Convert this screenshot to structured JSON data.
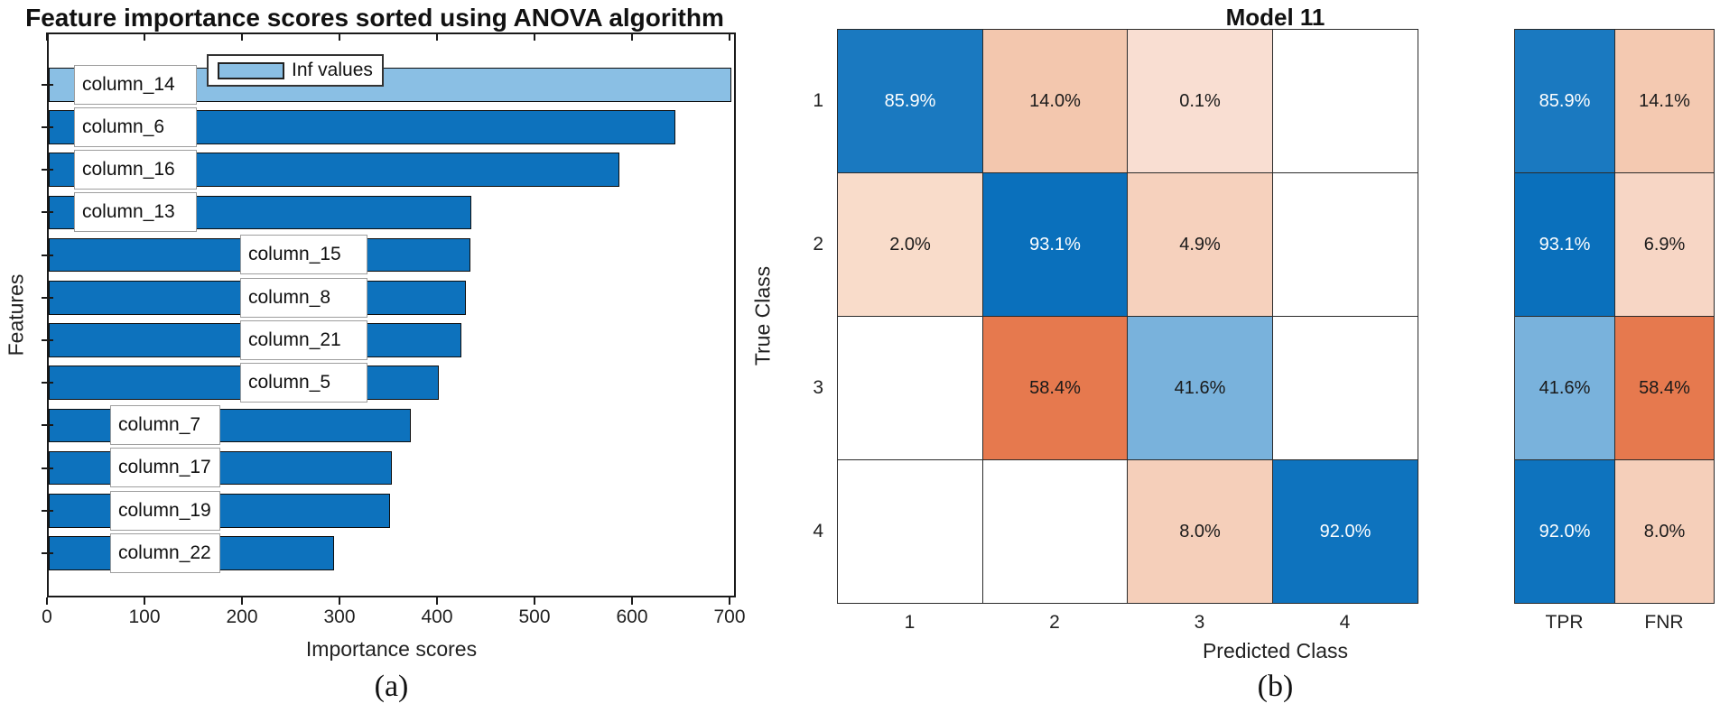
{
  "figure_a": {
    "title": "Feature importance scores sorted using ANOVA algorithm",
    "xlabel": "Importance scores",
    "ylabel": "Features",
    "caption": "(a)",
    "legend": {
      "label": "Inf values"
    },
    "x_ticks": [
      "0",
      "100",
      "200",
      "300",
      "400",
      "500",
      "600",
      "700"
    ],
    "bars": [
      {
        "label": "column_14",
        "value": "Inf",
        "display": 700,
        "color": "bar_light_blue",
        "box": "A"
      },
      {
        "label": "column_6",
        "value": 643,
        "display": 643,
        "color": "bar_blue",
        "box": "A"
      },
      {
        "label": "column_16",
        "value": 585,
        "display": 585,
        "color": "bar_blue",
        "box": "A"
      },
      {
        "label": "column_13",
        "value": 433,
        "display": 433,
        "color": "bar_blue",
        "box": "A"
      },
      {
        "label": "column_15",
        "value": 432,
        "display": 432,
        "color": "bar_blue",
        "box": "B"
      },
      {
        "label": "column_8",
        "value": 428,
        "display": 428,
        "color": "bar_blue",
        "box": "B"
      },
      {
        "label": "column_21",
        "value": 423,
        "display": 423,
        "color": "bar_blue",
        "box": "B"
      },
      {
        "label": "column_5",
        "value": 400,
        "display": 400,
        "color": "bar_blue",
        "box": "B"
      },
      {
        "label": "column_7",
        "value": 371,
        "display": 371,
        "color": "bar_blue",
        "box": "C"
      },
      {
        "label": "column_17",
        "value": 352,
        "display": 352,
        "color": "bar_blue",
        "box": "C"
      },
      {
        "label": "column_19",
        "value": 350,
        "display": 350,
        "color": "bar_blue",
        "box": "C"
      },
      {
        "label": "column_22",
        "value": 293,
        "display": 293,
        "color": "bar_blue",
        "box": "C"
      }
    ]
  },
  "figure_b": {
    "title": "Model 11",
    "xlabel": "Predicted Class",
    "ylabel": "True Class",
    "caption": "(b)",
    "x_ticks": [
      "1",
      "2",
      "3",
      "4"
    ],
    "y_ticks": [
      "1",
      "2",
      "3",
      "4"
    ],
    "summary_headers": [
      "TPR",
      "FNR"
    ],
    "matrix": [
      [
        {
          "text": "85.9%",
          "color": "blue_859",
          "fg": "white"
        },
        {
          "text": "14.0%",
          "color": "peach_14",
          "fg": "dark"
        },
        {
          "text": "0.1%",
          "color": "peach_01",
          "fg": "dark"
        },
        {
          "text": "",
          "color": null,
          "fg": "dark"
        }
      ],
      [
        {
          "text": "2.0%",
          "color": "peach_20",
          "fg": "dark"
        },
        {
          "text": "93.1%",
          "color": "blue_full",
          "fg": "white"
        },
        {
          "text": "4.9%",
          "color": "peach_49",
          "fg": "dark"
        },
        {
          "text": "",
          "color": null,
          "fg": "dark"
        }
      ],
      [
        {
          "text": "",
          "color": null,
          "fg": "dark"
        },
        {
          "text": "58.4%",
          "color": "orange_584",
          "fg": "dark"
        },
        {
          "text": "41.6%",
          "color": "blue_416",
          "fg": "dark"
        },
        {
          "text": "",
          "color": null,
          "fg": "dark"
        }
      ],
      [
        {
          "text": "",
          "color": null,
          "fg": "dark"
        },
        {
          "text": "",
          "color": null,
          "fg": "dark"
        },
        {
          "text": "8.0%",
          "color": "peach_80",
          "fg": "dark"
        },
        {
          "text": "92.0%",
          "color": "blue_92",
          "fg": "white"
        }
      ]
    ],
    "summary": [
      [
        {
          "text": "85.9%",
          "color": "blue_859",
          "fg": "white"
        },
        {
          "text": "14.1%",
          "color": "peach_141",
          "fg": "dark"
        }
      ],
      [
        {
          "text": "93.1%",
          "color": "blue_full",
          "fg": "white"
        },
        {
          "text": "6.9%",
          "color": "peach_69",
          "fg": "dark"
        }
      ],
      [
        {
          "text": "41.6%",
          "color": "blue_416",
          "fg": "dark"
        },
        {
          "text": "58.4%",
          "color": "orange_584",
          "fg": "dark"
        }
      ],
      [
        {
          "text": "92.0%",
          "color": "blue_92",
          "fg": "white"
        },
        {
          "text": "8.0%",
          "color": "peach_80",
          "fg": "dark"
        }
      ]
    ]
  },
  "colors": {
    "bar_blue": "#0d72bd",
    "bar_light_blue": "#8abfe4",
    "blue_full": "#0a70bc",
    "blue_92": "#0e73be",
    "blue_859": "#1a79c0",
    "blue_416": "#79b2dc",
    "orange_584": "#e6794e",
    "peach_14": "#f3c7ae",
    "peach_141": "#f4c9b1",
    "peach_80": "#f5cfba",
    "peach_49": "#f6d1bd",
    "peach_69": "#f7d6c5",
    "peach_20": "#f9dcca",
    "peach_01": "#f9ded2"
  },
  "chart_data": [
    {
      "type": "bar",
      "orientation": "horizontal",
      "title": "Feature importance scores sorted using ANOVA algorithm",
      "xlabel": "Importance scores",
      "ylabel": "Features",
      "categories": [
        "column_14",
        "column_6",
        "column_16",
        "column_13",
        "column_15",
        "column_8",
        "column_21",
        "column_5",
        "column_7",
        "column_17",
        "column_19",
        "column_22"
      ],
      "values": [
        "Inf",
        643,
        585,
        433,
        432,
        428,
        423,
        400,
        371,
        352,
        350,
        293
      ],
      "xlim": [
        0,
        700
      ],
      "x_tick_step": 100,
      "legend": [
        "Inf values"
      ],
      "legend_note": "column_14 bar drawn at axis maximum (700) and colored light blue to mark Inf value",
      "grid": false
    },
    {
      "type": "heatmap",
      "subtype": "confusion-matrix",
      "title": "Model 11",
      "xlabel": "Predicted Class",
      "ylabel": "True Class",
      "x_categories": [
        "1",
        "2",
        "3",
        "4"
      ],
      "y_categories": [
        "1",
        "2",
        "3",
        "4"
      ],
      "values_percent": [
        [
          85.9,
          14.0,
          0.1,
          null
        ],
        [
          2.0,
          93.1,
          4.9,
          null
        ],
        [
          null,
          58.4,
          41.6,
          null
        ],
        [
          null,
          null,
          8.0,
          92.0
        ]
      ],
      "summary_columns": [
        "TPR",
        "FNR"
      ],
      "summary_percent": [
        [
          85.9,
          14.1
        ],
        [
          93.1,
          6.9
        ],
        [
          41.6,
          58.4
        ],
        [
          92.0,
          8.0
        ]
      ]
    }
  ]
}
